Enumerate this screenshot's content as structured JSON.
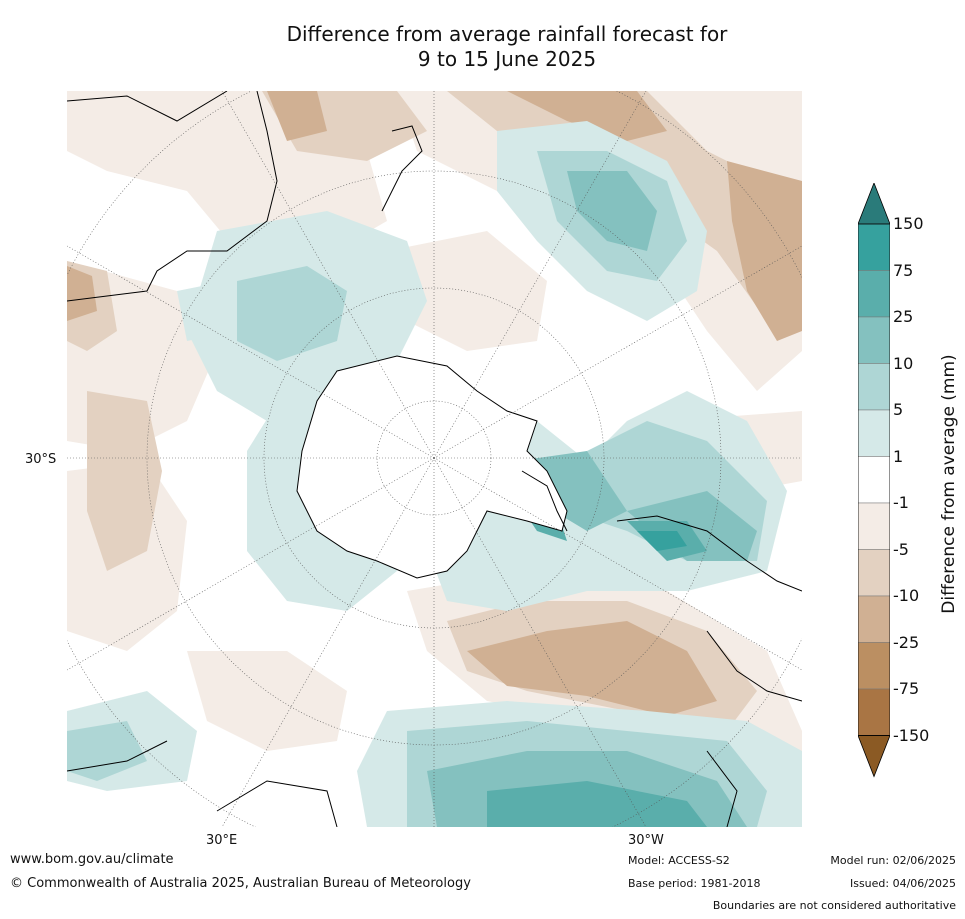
{
  "title_line1": "Difference from average rainfall forecast for",
  "title_line2": "9 to 15 June 2025",
  "map": {
    "projection": "south polar stereographic",
    "lat_label": "30°S",
    "lon_labels": [
      "30°E",
      "30°W"
    ]
  },
  "colorbar": {
    "label": "Difference from average (mm)",
    "ticks": [
      "150",
      "75",
      "25",
      "10",
      "5",
      "1",
      "-1",
      "-5",
      "-10",
      "-25",
      "-75",
      "-150"
    ],
    "colors": [
      "#2a7b7a",
      "#36a19e",
      "#5aaeab",
      "#84c1bf",
      "#aed6d5",
      "#d5e9e8",
      "#ffffff",
      "#f4ece6",
      "#e3d1c1",
      "#d0b093",
      "#bb8f62",
      "#a97544",
      "#8b5a24"
    ]
  },
  "footer": {
    "url": "www.bom.gov.au/climate",
    "copyright": "© Commonwealth of Australia 2025, Australian Bureau of Meteorology",
    "model": "Model: ACCESS-S2",
    "base_period": "Base period: 1981-2018",
    "model_run": "Model run: 02/06/2025",
    "issued": "Issued: 04/06/2025",
    "disclaimer": "Boundaries are not considered authoritative"
  }
}
